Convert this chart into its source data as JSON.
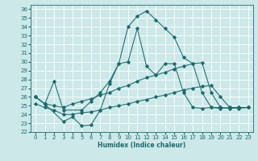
{
  "xlabel": "Humidex (Indice chaleur)",
  "xlim": [
    -0.5,
    23.5
  ],
  "ylim": [
    22,
    36.5
  ],
  "xticks": [
    0,
    1,
    2,
    3,
    4,
    5,
    6,
    7,
    8,
    9,
    10,
    11,
    12,
    13,
    14,
    15,
    16,
    17,
    18,
    19,
    20,
    21,
    22,
    23
  ],
  "yticks": [
    22,
    23,
    24,
    25,
    26,
    27,
    28,
    29,
    30,
    31,
    32,
    33,
    34,
    35,
    36
  ],
  "bg_color": "#cce8e8",
  "line_color": "#1a6b6e",
  "grid_color": "#ffffff",
  "lines": [
    {
      "x": [
        0,
        1,
        3,
        4,
        5,
        6,
        7,
        8,
        9,
        10,
        11,
        12,
        13,
        14,
        15,
        16,
        17,
        18,
        19,
        20,
        21,
        22,
        23
      ],
      "y": [
        26.0,
        25.2,
        23.2,
        23.7,
        22.7,
        22.8,
        24.5,
        27.5,
        29.8,
        34.0,
        35.2,
        35.8,
        34.8,
        33.8,
        32.8,
        30.5,
        29.8,
        26.5,
        24.8,
        24.7,
        24.8,
        24.8,
        24.8
      ]
    },
    {
      "x": [
        0,
        1,
        2,
        3,
        5,
        6,
        7,
        8,
        9,
        10,
        11,
        12,
        13,
        14,
        15,
        16,
        17,
        18,
        19,
        20
      ],
      "y": [
        26.0,
        25.2,
        27.8,
        24.5,
        24.5,
        25.5,
        26.5,
        27.8,
        29.8,
        30.0,
        33.8,
        29.5,
        28.5,
        29.8,
        29.8,
        26.5,
        24.8,
        24.7,
        24.8,
        24.8
      ]
    },
    {
      "x": [
        0,
        1,
        2,
        3,
        4,
        5,
        6,
        7,
        8,
        9,
        10,
        11,
        12,
        13,
        14,
        15,
        16,
        17,
        18,
        19,
        20,
        21,
        22,
        23
      ],
      "y": [
        26.0,
        25.2,
        25.0,
        24.8,
        25.2,
        25.5,
        25.8,
        26.2,
        26.5,
        27.0,
        27.3,
        27.8,
        28.2,
        28.5,
        28.8,
        29.2,
        29.5,
        29.8,
        29.9,
        26.5,
        24.8,
        24.7,
        24.8,
        24.8
      ]
    },
    {
      "x": [
        0,
        1,
        2,
        3,
        4,
        5,
        6,
        7,
        8,
        9,
        10,
        11,
        12,
        13,
        14,
        15,
        16,
        17,
        18,
        19,
        20,
        21,
        22,
        23
      ],
      "y": [
        25.2,
        24.8,
        24.5,
        24.0,
        24.0,
        24.2,
        24.3,
        24.5,
        24.8,
        25.0,
        25.2,
        25.5,
        25.7,
        26.0,
        26.2,
        26.5,
        26.8,
        27.0,
        27.2,
        27.3,
        26.0,
        24.8,
        24.7,
        24.8
      ]
    }
  ]
}
